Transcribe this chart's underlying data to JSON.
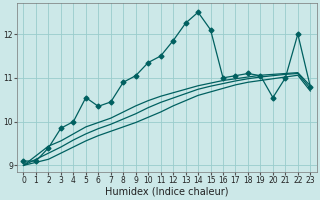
{
  "title": "",
  "xlabel": "Humidex (Indice chaleur)",
  "x": [
    0,
    1,
    2,
    3,
    4,
    5,
    6,
    7,
    8,
    9,
    10,
    11,
    12,
    13,
    14,
    15,
    16,
    17,
    18,
    19,
    20,
    21,
    22,
    23
  ],
  "y_main": [
    9.1,
    9.1,
    9.4,
    9.85,
    10.0,
    10.55,
    10.35,
    10.45,
    10.9,
    11.05,
    11.35,
    11.5,
    11.85,
    12.25,
    12.5,
    12.1,
    11.0,
    11.05,
    11.1,
    11.05,
    10.55,
    11.0,
    12.0,
    10.8
  ],
  "y_line1": [
    9.0,
    9.22,
    9.44,
    9.56,
    9.72,
    9.88,
    9.98,
    10.08,
    10.22,
    10.36,
    10.48,
    10.58,
    10.66,
    10.74,
    10.82,
    10.88,
    10.94,
    10.98,
    11.02,
    11.06,
    11.08,
    11.1,
    11.12,
    10.82
  ],
  "y_line2": [
    9.0,
    9.14,
    9.28,
    9.42,
    9.58,
    9.72,
    9.84,
    9.94,
    10.06,
    10.18,
    10.32,
    10.44,
    10.54,
    10.64,
    10.74,
    10.81,
    10.87,
    10.93,
    10.98,
    11.02,
    11.05,
    11.08,
    11.1,
    10.76
  ],
  "y_line3": [
    9.0,
    9.07,
    9.14,
    9.28,
    9.42,
    9.56,
    9.68,
    9.78,
    9.88,
    9.98,
    10.1,
    10.22,
    10.36,
    10.48,
    10.6,
    10.68,
    10.76,
    10.84,
    10.9,
    10.94,
    10.98,
    11.02,
    11.06,
    10.7
  ],
  "background_color": "#cce8e8",
  "line_color": "#006060",
  "grid_color": "#99cccc",
  "ylim": [
    8.85,
    12.7
  ],
  "xlim": [
    -0.5,
    23.5
  ],
  "yticks": [
    9,
    10,
    11,
    12
  ],
  "xticks": [
    0,
    1,
    2,
    3,
    4,
    5,
    6,
    7,
    8,
    9,
    10,
    11,
    12,
    13,
    14,
    15,
    16,
    17,
    18,
    19,
    20,
    21,
    22,
    23
  ],
  "tick_fontsize": 5.5,
  "xlabel_fontsize": 7,
  "marker_size": 2.5,
  "linewidth": 0.9
}
